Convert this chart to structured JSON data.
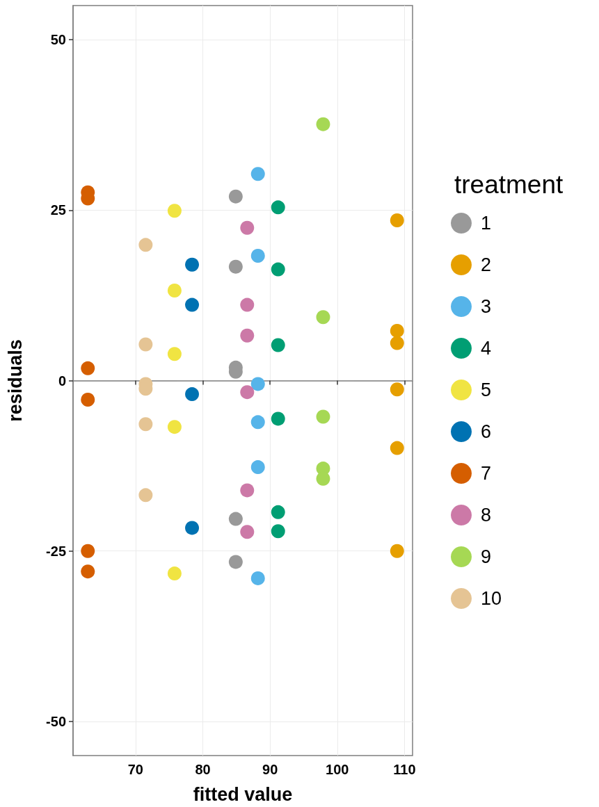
{
  "chart_data": {
    "type": "scatter",
    "xlabel": "fitted value",
    "ylabel": "residuals",
    "legend_title": "treatment",
    "xlim": [
      60.7,
      111.2
    ],
    "xticks": [
      70,
      80,
      90,
      100,
      110
    ],
    "ylim": [
      -55,
      55
    ],
    "yticks": [
      -50,
      -25,
      0,
      25,
      50
    ],
    "grid": true,
    "legend": "right",
    "marker": "circle",
    "series": [
      {
        "name": "1",
        "color": "#999999",
        "x": [
          84.9,
          84.9,
          84.9,
          84.9,
          84.9,
          84.9
        ],
        "values": [
          27.0,
          16.7,
          1.9,
          1.3,
          -20.3,
          -26.6
        ]
      },
      {
        "name": "2",
        "color": "#e69f00",
        "x": [
          108.9,
          108.9,
          108.9,
          108.9,
          108.9,
          108.9
        ],
        "values": [
          23.5,
          7.3,
          5.5,
          -1.3,
          -9.9,
          -25.0
        ]
      },
      {
        "name": "3",
        "color": "#56b4e9",
        "x": [
          88.2,
          88.2,
          88.2,
          88.2,
          88.2,
          88.2
        ],
        "values": [
          30.3,
          18.3,
          -0.5,
          -6.1,
          -12.7,
          -29.0
        ]
      },
      {
        "name": "4",
        "color": "#009e73",
        "x": [
          91.2,
          91.2,
          91.2,
          91.2,
          91.2,
          91.2
        ],
        "values": [
          25.4,
          16.3,
          5.2,
          -5.6,
          -19.3,
          -22.1
        ]
      },
      {
        "name": "5",
        "color": "#f0e442",
        "x": [
          75.8,
          75.8,
          75.8,
          75.8,
          75.8
        ],
        "values": [
          24.9,
          13.2,
          3.9,
          -6.8,
          -28.3
        ]
      },
      {
        "name": "6",
        "color": "#0072b2",
        "x": [
          78.4,
          78.4,
          78.4,
          78.4
        ],
        "values": [
          17.0,
          11.1,
          -2.0,
          -21.6
        ]
      },
      {
        "name": "7",
        "color": "#d55e00",
        "x": [
          62.9,
          62.9,
          62.9,
          62.9,
          62.9,
          62.9
        ],
        "values": [
          27.6,
          26.7,
          1.8,
          -2.8,
          -25.0,
          -28.0
        ]
      },
      {
        "name": "8",
        "color": "#cc79a7",
        "x": [
          86.6,
          86.6,
          86.6,
          86.6,
          86.6,
          86.6
        ],
        "values": [
          22.4,
          11.1,
          6.6,
          -1.7,
          -16.1,
          -22.2
        ]
      },
      {
        "name": "9",
        "color": "#a6d854",
        "x": [
          97.9,
          97.9,
          97.9,
          97.9,
          97.9
        ],
        "values": [
          37.6,
          9.3,
          -5.3,
          -12.9,
          -14.4
        ]
      },
      {
        "name": "10",
        "color": "#e5c494",
        "x": [
          71.5,
          71.5,
          71.5,
          71.5,
          71.5,
          71.5
        ],
        "values": [
          19.9,
          5.3,
          -0.5,
          -1.2,
          -6.4,
          -16.8
        ]
      }
    ]
  }
}
